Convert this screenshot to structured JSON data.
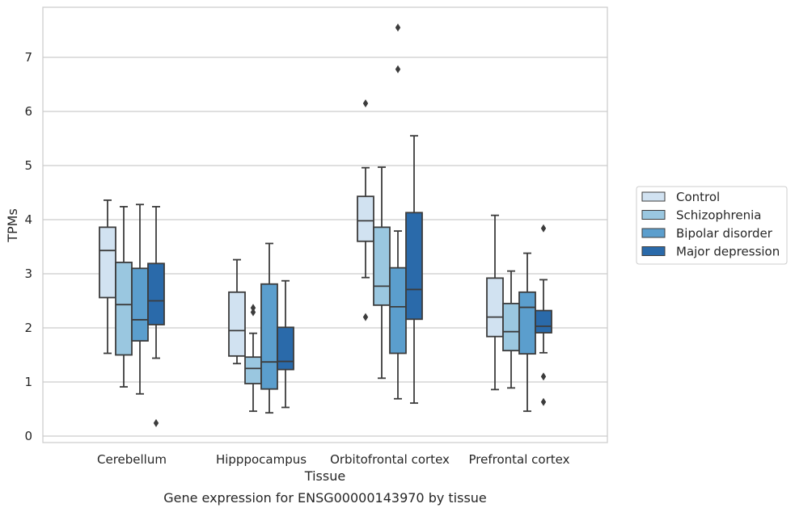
{
  "chart_data": {
    "type": "box",
    "title": "",
    "caption": "Gene expression for ENSG00000143970 by tissue",
    "xlabel": "Tissue",
    "ylabel": "TPMs",
    "ylim": [
      -0.1,
      7.9
    ],
    "yticks": [
      0,
      1,
      2,
      3,
      4,
      5,
      6,
      7
    ],
    "grid": true,
    "legend_position": "right",
    "categories": [
      "Cerebellum",
      "Hipppocampus",
      "Orbitofrontal cortex",
      "Prefrontal cortex"
    ],
    "series": [
      {
        "name": "Control",
        "color": "#d1e2f1",
        "boxes": [
          {
            "whislo": 1.53,
            "q1": 2.56,
            "med": 3.43,
            "q3": 3.86,
            "whishi": 4.36,
            "fliers": []
          },
          {
            "whislo": 1.34,
            "q1": 1.48,
            "med": 1.95,
            "q3": 2.66,
            "whishi": 3.26,
            "fliers": []
          },
          {
            "whislo": 2.93,
            "q1": 3.6,
            "med": 3.98,
            "q3": 4.43,
            "whishi": 4.96,
            "fliers": [
              6.15,
              2.2
            ]
          },
          {
            "whislo": 0.86,
            "q1": 1.84,
            "med": 2.2,
            "q3": 2.92,
            "whishi": 4.08,
            "fliers": []
          }
        ]
      },
      {
        "name": "Schizophrenia",
        "color": "#9ac7e0",
        "boxes": [
          {
            "whislo": 0.91,
            "q1": 1.5,
            "med": 2.43,
            "q3": 3.21,
            "whishi": 4.24,
            "fliers": []
          },
          {
            "whislo": 0.46,
            "q1": 0.97,
            "med": 1.25,
            "q3": 1.46,
            "whishi": 1.9,
            "fliers": [
              2.37,
              2.29
            ]
          },
          {
            "whislo": 1.07,
            "q1": 2.42,
            "med": 2.77,
            "q3": 3.86,
            "whishi": 4.97,
            "fliers": []
          },
          {
            "whislo": 0.89,
            "q1": 1.58,
            "med": 1.93,
            "q3": 2.45,
            "whishi": 3.05,
            "fliers": []
          }
        ]
      },
      {
        "name": "Bipolar disorder",
        "color": "#5b9ecd",
        "boxes": [
          {
            "whislo": 0.78,
            "q1": 1.76,
            "med": 2.15,
            "q3": 3.1,
            "whishi": 4.28,
            "fliers": []
          },
          {
            "whislo": 0.43,
            "q1": 0.87,
            "med": 1.37,
            "q3": 2.81,
            "whishi": 3.56,
            "fliers": []
          },
          {
            "whislo": 0.69,
            "q1": 1.53,
            "med": 2.39,
            "q3": 3.11,
            "whishi": 3.79,
            "fliers": [
              7.55,
              6.78
            ]
          },
          {
            "whislo": 0.46,
            "q1": 1.52,
            "med": 2.38,
            "q3": 2.66,
            "whishi": 3.38,
            "fliers": []
          }
        ]
      },
      {
        "name": "Major depression",
        "color": "#2a6aaa",
        "boxes": [
          {
            "whislo": 1.44,
            "q1": 2.06,
            "med": 2.5,
            "q3": 3.19,
            "whishi": 4.24,
            "fliers": [
              0.24
            ]
          },
          {
            "whislo": 0.53,
            "q1": 1.23,
            "med": 1.38,
            "q3": 2.01,
            "whishi": 2.87,
            "fliers": []
          },
          {
            "whislo": 0.61,
            "q1": 2.16,
            "med": 2.71,
            "q3": 4.13,
            "whishi": 5.55,
            "fliers": []
          },
          {
            "whislo": 1.54,
            "q1": 1.91,
            "med": 2.03,
            "q3": 2.32,
            "whishi": 2.89,
            "fliers": [
              3.84,
              1.1,
              0.63
            ]
          }
        ]
      }
    ]
  }
}
